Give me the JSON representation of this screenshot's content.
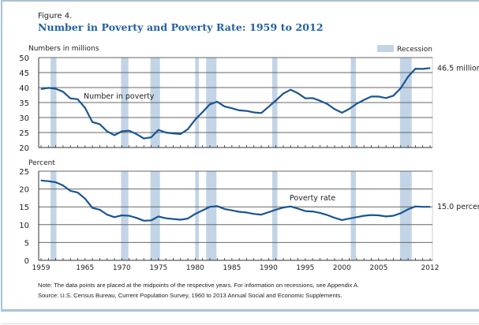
{
  "figure": {
    "label": "Figure 4.",
    "title": "Number in Poverty and Poverty Rate: 1959 to 2012",
    "note": "Note: The data points are placed at the midpoints of the respective years. For information on recessions, see Appendix A.",
    "source": "Source: U.S. Census Bureau, Current Population Survey, 1960 to 2013 Annual Social and Economic Supplements."
  },
  "colors": {
    "line": "#1a5592",
    "recession": "#c2d4e6",
    "grid": "#555555",
    "title": "#1f5fa3",
    "frame": "#a9c1d6"
  },
  "chart_data": [
    {
      "type": "line",
      "title": "Number in poverty",
      "ylabel": "Numbers in millions",
      "series_label": "Number in poverty",
      "end_label": "46.5 million",
      "ylim": [
        20,
        50
      ],
      "yticks": [
        20,
        25,
        30,
        35,
        40,
        45,
        50
      ],
      "grid": true,
      "x": [
        1959,
        1960,
        1961,
        1962,
        1963,
        1964,
        1965,
        1966,
        1967,
        1968,
        1969,
        1970,
        1971,
        1972,
        1973,
        1974,
        1975,
        1976,
        1977,
        1978,
        1979,
        1980,
        1981,
        1982,
        1983,
        1984,
        1985,
        1986,
        1987,
        1988,
        1989,
        1990,
        1991,
        1992,
        1993,
        1994,
        1995,
        1996,
        1997,
        1998,
        1999,
        2000,
        2001,
        2002,
        2003,
        2004,
        2005,
        2006,
        2007,
        2008,
        2009,
        2010,
        2011,
        2012
      ],
      "values": [
        39.5,
        39.9,
        39.6,
        38.6,
        36.4,
        36.1,
        33.2,
        28.5,
        27.8,
        25.4,
        24.1,
        25.4,
        25.6,
        24.5,
        23.0,
        23.4,
        25.9,
        25.0,
        24.7,
        24.5,
        26.1,
        29.3,
        31.8,
        34.4,
        35.3,
        33.7,
        33.1,
        32.4,
        32.2,
        31.7,
        31.5,
        33.6,
        35.7,
        38.0,
        39.3,
        38.1,
        36.4,
        36.5,
        35.6,
        34.5,
        32.8,
        31.6,
        32.9,
        34.6,
        35.9,
        37.0,
        37.0,
        36.5,
        37.3,
        39.8,
        43.6,
        46.3,
        46.2,
        46.5
      ],
      "legend": {
        "label": "Recession",
        "position": "top-right"
      }
    },
    {
      "type": "line",
      "title": "Poverty rate",
      "ylabel": "Percent",
      "series_label": "Poverty rate",
      "end_label": "15.0 percent",
      "ylim": [
        0,
        25
      ],
      "yticks": [
        0,
        5,
        10,
        15,
        20,
        25
      ],
      "grid": true,
      "x": [
        1959,
        1960,
        1961,
        1962,
        1963,
        1964,
        1965,
        1966,
        1967,
        1968,
        1969,
        1970,
        1971,
        1972,
        1973,
        1974,
        1975,
        1976,
        1977,
        1978,
        1979,
        1980,
        1981,
        1982,
        1983,
        1984,
        1985,
        1986,
        1987,
        1988,
        1989,
        1990,
        1991,
        1992,
        1993,
        1994,
        1995,
        1996,
        1997,
        1998,
        1999,
        2000,
        2001,
        2002,
        2003,
        2004,
        2005,
        2006,
        2007,
        2008,
        2009,
        2010,
        2011,
        2012
      ],
      "values": [
        22.4,
        22.2,
        21.9,
        21.0,
        19.5,
        19.0,
        17.3,
        14.7,
        14.2,
        12.8,
        12.1,
        12.6,
        12.5,
        11.9,
        11.1,
        11.2,
        12.3,
        11.8,
        11.6,
        11.4,
        11.7,
        13.0,
        14.0,
        15.0,
        15.2,
        14.4,
        14.0,
        13.6,
        13.4,
        13.0,
        12.8,
        13.5,
        14.2,
        14.8,
        15.1,
        14.5,
        13.8,
        13.7,
        13.3,
        12.7,
        11.9,
        11.3,
        11.7,
        12.1,
        12.5,
        12.7,
        12.6,
        12.3,
        12.5,
        13.2,
        14.3,
        15.1,
        15.0,
        15.0
      ]
    }
  ],
  "recessions": [
    {
      "start": 1960.3,
      "end": 1961.1
    },
    {
      "start": 1969.9,
      "end": 1970.9
    },
    {
      "start": 1973.9,
      "end": 1975.2
    },
    {
      "start": 1980.0,
      "end": 1980.5
    },
    {
      "start": 1981.5,
      "end": 1982.9
    },
    {
      "start": 1990.5,
      "end": 1991.2
    },
    {
      "start": 2001.2,
      "end": 2001.9
    },
    {
      "start": 2007.9,
      "end": 2009.5
    }
  ],
  "xaxis": {
    "ticks_labeled": [
      1959,
      1965,
      1970,
      1975,
      1980,
      1985,
      1990,
      1995,
      2000,
      2005,
      2012
    ],
    "min": 1959,
    "max": 2012
  }
}
